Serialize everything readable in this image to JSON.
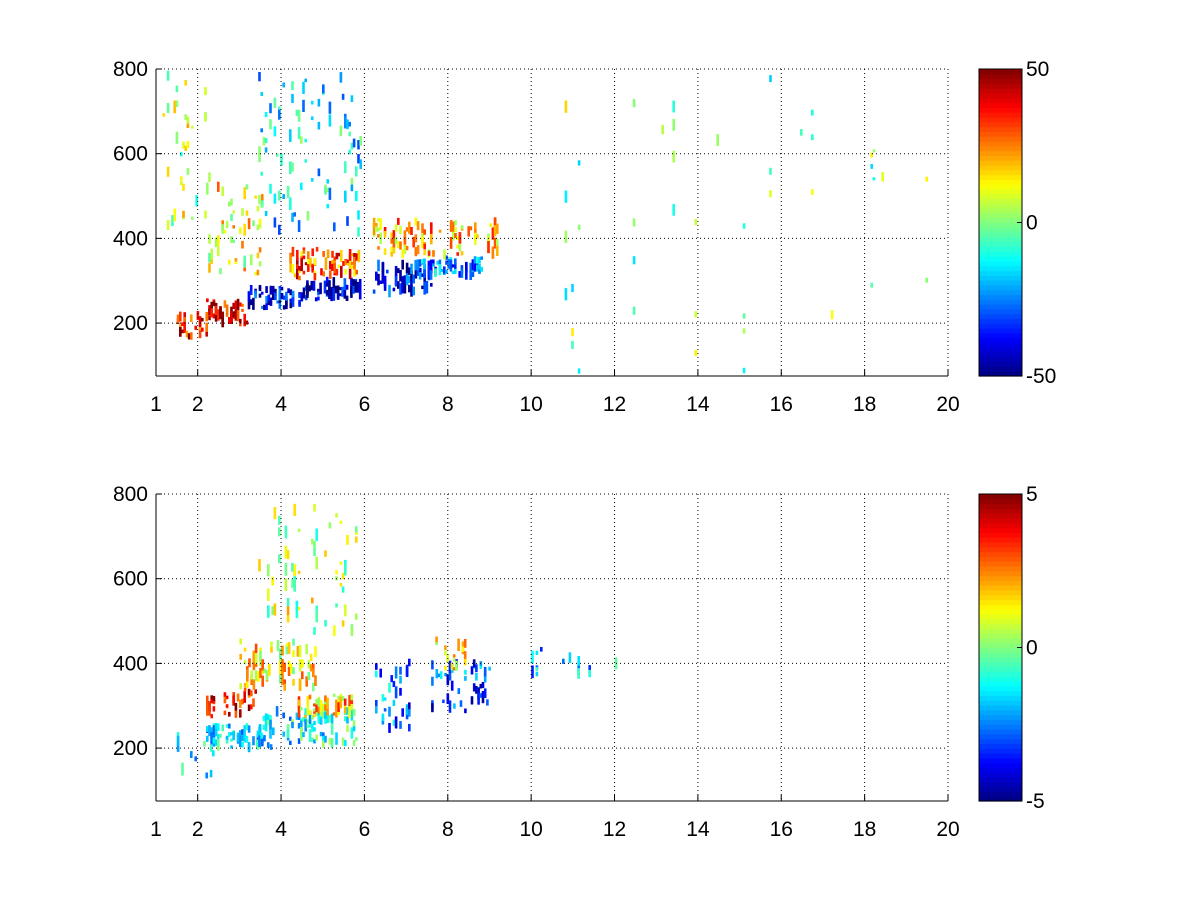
{
  "chart_data": [
    {
      "type": "heatmap",
      "title": "",
      "xlabel": "",
      "ylabel": "",
      "xlim": [
        1,
        20
      ],
      "ylim": [
        75,
        800
      ],
      "grid": true,
      "grid_style": "dotted",
      "x_ticks": [
        1,
        2,
        4,
        6,
        8,
        10,
        12,
        14,
        16,
        18,
        20
      ],
      "y_ticks": [
        200,
        400,
        600,
        800
      ],
      "colorbar": {
        "colormap": "jet",
        "min": -50,
        "max": 50,
        "ticks": [
          -50,
          0,
          50
        ]
      },
      "pattern": "dense cloud of values between x 1.5 and 9.5; strongly negative (blue) band near y 230-330 for x 3.5-8.5, strongly positive (red) band near y 190-300 for x 1.8-4.5; sparse near-zero speckle at x 10-20 all heights",
      "features": [
        {
          "x": [
            1.5,
            2.2
          ],
          "y": [
            160,
            230
          ],
          "level": 35,
          "density": 0.9
        },
        {
          "x": [
            2.2,
            3.2
          ],
          "y": [
            190,
            260
          ],
          "level": 42,
          "density": 0.95
        },
        {
          "x": [
            3.2,
            4.6
          ],
          "y": [
            230,
            290
          ],
          "level": -40,
          "density": 0.95
        },
        {
          "x": [
            4.6,
            5.9
          ],
          "y": [
            250,
            310
          ],
          "level": -42,
          "density": 0.95
        },
        {
          "x": [
            4.2,
            5.9
          ],
          "y": [
            300,
            380
          ],
          "level": 28,
          "density": 0.9
        },
        {
          "x": [
            6.2,
            7.6
          ],
          "y": [
            260,
            350
          ],
          "level": -38,
          "density": 0.9
        },
        {
          "x": [
            7.2,
            8.8
          ],
          "y": [
            300,
            360
          ],
          "level": -25,
          "density": 0.8
        },
        {
          "x": [
            6.2,
            9.2
          ],
          "y": [
            350,
            450
          ],
          "level": 20,
          "density": 0.7
        },
        {
          "x": [
            2.2,
            3.6
          ],
          "y": [
            300,
            560
          ],
          "level": 12,
          "density": 0.85
        },
        {
          "x": [
            3.4,
            5.9
          ],
          "y": [
            400,
            800
          ],
          "level": -14,
          "density": 0.75
        },
        {
          "x": [
            1.1,
            2.2
          ],
          "y": [
            380,
            800
          ],
          "level": 6,
          "density": 0.45
        },
        {
          "x": [
            9.8,
            20
          ],
          "y": [
            75,
            800
          ],
          "level": 0,
          "density": 0.09
        }
      ]
    },
    {
      "type": "heatmap",
      "title": "",
      "xlabel": "",
      "ylabel": "",
      "xlim": [
        1,
        20
      ],
      "ylim": [
        75,
        800
      ],
      "grid": true,
      "grid_style": "dotted",
      "x_ticks": [
        1,
        2,
        4,
        6,
        8,
        10,
        12,
        14,
        16,
        18,
        20
      ],
      "y_ticks": [
        200,
        400,
        600,
        800
      ],
      "colorbar": {
        "colormap": "jet",
        "min": -5,
        "max": 5,
        "ticks": [
          -5,
          0,
          5
        ]
      },
      "pattern": "cloud confined to x 1.5-9; positive (red) streak near x 2.2-3.4, y 280-340; negative (blue) patches at x 6.2-9, y 250-420; isolated points near x 10-12, y 360-440",
      "features": [
        {
          "x": [
            1.5,
            2.4
          ],
          "y": [
            120,
            240
          ],
          "level": -1,
          "density": 0.5
        },
        {
          "x": [
            2.2,
            3.4
          ],
          "y": [
            270,
            340
          ],
          "level": 3.8,
          "density": 0.85
        },
        {
          "x": [
            2.2,
            3.8
          ],
          "y": [
            190,
            260
          ],
          "level": -1.6,
          "density": 0.85
        },
        {
          "x": [
            3.4,
            5.8
          ],
          "y": [
            200,
            300
          ],
          "level": -1.2,
          "density": 0.8
        },
        {
          "x": [
            3.0,
            4.8
          ],
          "y": [
            330,
            460
          ],
          "level": 1.4,
          "density": 0.8
        },
        {
          "x": [
            3.4,
            5.8
          ],
          "y": [
            460,
            780
          ],
          "level": 0.5,
          "density": 0.5
        },
        {
          "x": [
            4.4,
            5.9
          ],
          "y": [
            270,
            330
          ],
          "level": 1.8,
          "density": 0.7
        },
        {
          "x": [
            6.2,
            7.2
          ],
          "y": [
            220,
            420
          ],
          "level": -2.6,
          "density": 0.75
        },
        {
          "x": [
            7.6,
            9.0
          ],
          "y": [
            280,
            410
          ],
          "level": -3.0,
          "density": 0.85
        },
        {
          "x": [
            7.7,
            8.4
          ],
          "y": [
            380,
            470
          ],
          "level": 1.6,
          "density": 0.7
        },
        {
          "x": [
            10.0,
            12.1
          ],
          "y": [
            360,
            440
          ],
          "level": -1.8,
          "density": 0.15
        }
      ]
    }
  ]
}
